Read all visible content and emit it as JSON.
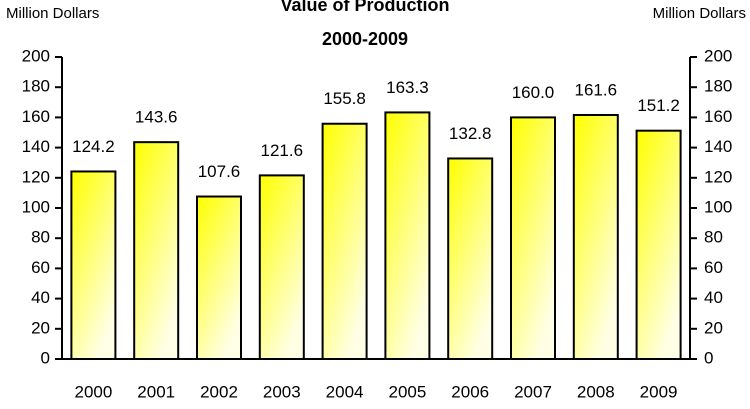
{
  "chart_data": {
    "type": "bar",
    "title": "Value of Production",
    "subtitle": "2000-2009",
    "ylabel": "Million Dollars",
    "y2label": "Million Dollars",
    "categories": [
      "2000",
      "2001",
      "2002",
      "2003",
      "2004",
      "2005",
      "2006",
      "2007",
      "2008",
      "2009"
    ],
    "values": [
      124.2,
      143.6,
      107.6,
      121.6,
      155.8,
      163.3,
      132.8,
      160,
      161.6,
      151.2
    ],
    "value_labels": [
      "124.2",
      "143.6",
      "107.6",
      "121.6",
      "155.8",
      "163.3",
      "132.8",
      "160.0",
      "161.6",
      "151.2"
    ],
    "color": "#ffff00",
    "ylim": [
      0,
      200
    ],
    "yticks": [
      0,
      20,
      40,
      60,
      80,
      100,
      120,
      140,
      160,
      180,
      200
    ],
    "y2lim": [
      0,
      200
    ],
    "y2ticks": [
      0,
      20,
      40,
      60,
      80,
      100,
      120,
      140,
      160,
      180,
      200
    ],
    "grid": false
  }
}
